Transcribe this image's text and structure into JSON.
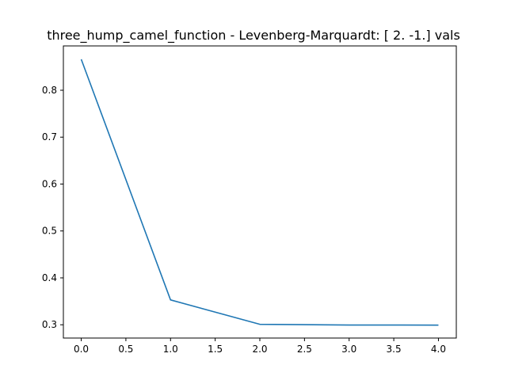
{
  "chart_data": {
    "type": "line",
    "title": "three_hump_camel_function - Levenberg-Marquardt: [ 2. -1.] vals",
    "xlabel": "",
    "ylabel": "",
    "x": [
      0,
      1,
      2,
      3,
      4
    ],
    "series": [
      {
        "values": [
          0.866,
          0.353,
          0.301,
          0.2995,
          0.2993
        ],
        "color": "#1f77b4"
      }
    ],
    "xlim": [
      -0.2,
      4.2
    ],
    "ylim": [
      0.2717,
      0.8945
    ],
    "xticks": [
      0,
      0.5,
      1,
      1.5,
      2,
      2.5,
      3,
      3.5,
      4
    ],
    "xtick_labels": [
      "0.0",
      "0.5",
      "1.0",
      "1.5",
      "2.0",
      "2.5",
      "3.0",
      "3.5",
      "4.0"
    ],
    "yticks": [
      0.3,
      0.4,
      0.5,
      0.6,
      0.7,
      0.8
    ],
    "ytick_labels": [
      "0.3",
      "0.4",
      "0.5",
      "0.6",
      "0.7",
      "0.8"
    ],
    "grid": false,
    "legend": "none"
  }
}
